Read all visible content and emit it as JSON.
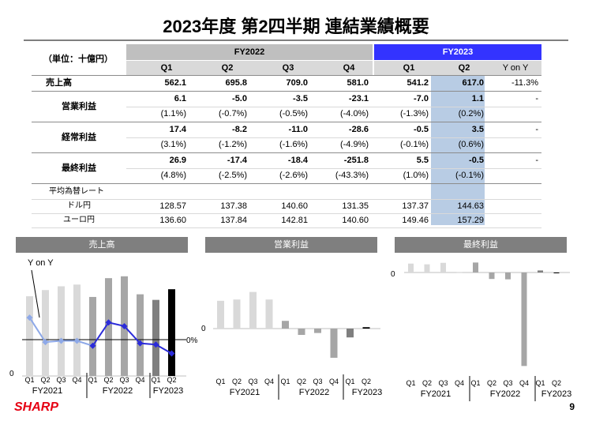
{
  "page": {
    "title": "2023年度 第2四半期 連結業績概要",
    "unit_label": "（単位：十億円）",
    "page_number": "9",
    "logo": "SHARP"
  },
  "table": {
    "fy_headers": [
      "FY2022",
      "FY2023"
    ],
    "quarters": [
      "Q1",
      "Q2",
      "Q3",
      "Q4",
      "Q1",
      "Q2"
    ],
    "yoy_header": "Y on Y",
    "rows": [
      {
        "label": "売上高",
        "values": [
          "562.1",
          "695.8",
          "709.0",
          "581.0",
          "541.2",
          "617.0"
        ],
        "yoy": "-11.3%"
      },
      {
        "label": "営業利益",
        "values": [
          "6.1",
          "-5.0",
          "-3.5",
          "-23.1",
          "-7.0",
          "1.1"
        ],
        "pct": [
          "(1.1%)",
          "(-0.7%)",
          "(-0.5%)",
          "(-4.0%)",
          "(-1.3%)",
          "(0.2%)"
        ],
        "yoy": "-"
      },
      {
        "label": "経常利益",
        "values": [
          "17.4",
          "-8.2",
          "-11.0",
          "-28.6",
          "-0.5",
          "3.5"
        ],
        "pct": [
          "(3.1%)",
          "(-1.2%)",
          "(-1.6%)",
          "(-4.9%)",
          "(-0.1%)",
          "(0.6%)"
        ],
        "yoy": "-"
      },
      {
        "label": "最終利益",
        "values": [
          "26.9",
          "-17.4",
          "-18.4",
          "-251.8",
          "5.5",
          "-0.5"
        ],
        "pct": [
          "(4.8%)",
          "(-2.5%)",
          "(-2.6%)",
          "(-43.3%)",
          "(1.0%)",
          "(-0.1%)"
        ],
        "yoy": "-"
      }
    ],
    "fx_title": "平均為替レート",
    "fx_rows": [
      {
        "label": "ドル円",
        "values": [
          "128.57",
          "137.38",
          "140.60",
          "131.35",
          "137.37",
          "144.63"
        ]
      },
      {
        "label": "ユーロ円",
        "values": [
          "136.60",
          "137.84",
          "142.81",
          "140.60",
          "149.46",
          "157.29"
        ]
      }
    ]
  },
  "chart_data": [
    {
      "type": "bar",
      "title": "売上高",
      "categories": [
        "Q1",
        "Q2",
        "Q3",
        "Q4",
        "Q1",
        "Q2",
        "Q3",
        "Q4",
        "Q1",
        "Q2"
      ],
      "groups": [
        "FY2021",
        "FY2022",
        "FY2023"
      ],
      "series": [
        {
          "values": [
            567,
            611,
            638,
            650,
            562.1,
            695.8,
            709.0,
            581.0,
            541.2,
            617.0
          ]
        },
        {
          "name": "Y on Y",
          "values": [
            18,
            -2,
            -1,
            -1,
            -5,
            14,
            11,
            -3,
            -4,
            -11.3
          ]
        }
      ],
      "zero_label": "0",
      "pct_zero_label": "0%",
      "annotation": "Y on Y",
      "colors": [
        "#d9d9d9",
        "#a6a6a6",
        "#7f7f7f",
        "#000000"
      ]
    },
    {
      "type": "bar",
      "title": "営業利益",
      "categories": [
        "Q1",
        "Q2",
        "Q3",
        "Q4",
        "Q1",
        "Q2",
        "Q3",
        "Q4",
        "Q1",
        "Q2"
      ],
      "groups": [
        "FY2021",
        "FY2022",
        "FY2023"
      ],
      "series": [
        {
          "values": [
            22,
            23,
            29,
            23,
            6.1,
            -5.0,
            -3.5,
            -23.1,
            -7.0,
            1.1
          ]
        }
      ],
      "zero_label": "0"
    },
    {
      "type": "bar",
      "title": "最終利益",
      "categories": [
        "Q1",
        "Q2",
        "Q3",
        "Q4",
        "Q1",
        "Q2",
        "Q3",
        "Q4",
        "Q1",
        "Q2"
      ],
      "groups": [
        "FY2021",
        "FY2022",
        "FY2023"
      ],
      "series": [
        {
          "values": [
            24,
            22,
            26,
            1.5,
            26.9,
            -17.4,
            -18.4,
            -251.8,
            5.5,
            -0.5
          ]
        }
      ],
      "zero_label": "0"
    }
  ]
}
